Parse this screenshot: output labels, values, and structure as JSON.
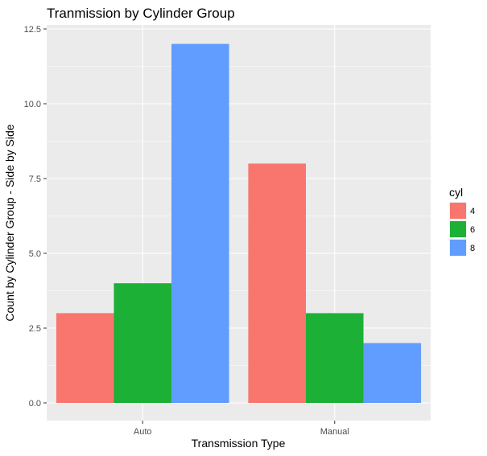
{
  "chart_data": {
    "type": "bar",
    "title": "Tranmission by Cylinder Group",
    "xlabel": "Transmission Type",
    "ylabel": "Count by Cylinder Group - Side by Side",
    "categories": [
      "Auto",
      "Manual"
    ],
    "series": [
      {
        "name": "4",
        "values": [
          3,
          8
        ],
        "color": "#F8766D"
      },
      {
        "name": "6",
        "values": [
          4,
          3
        ],
        "color": "#1CB036"
      },
      {
        "name": "8",
        "values": [
          12,
          2
        ],
        "color": "#619CFF"
      }
    ],
    "yticks": [
      "0.0",
      "2.5",
      "5.0",
      "7.5",
      "10.0",
      "12.5"
    ],
    "ylim": [
      0,
      12.6
    ],
    "grid": true,
    "legend": {
      "title": "cyl",
      "position": "right"
    },
    "colors": {
      "panel": "#EBEBEB",
      "grid": "#FFFFFF"
    }
  }
}
